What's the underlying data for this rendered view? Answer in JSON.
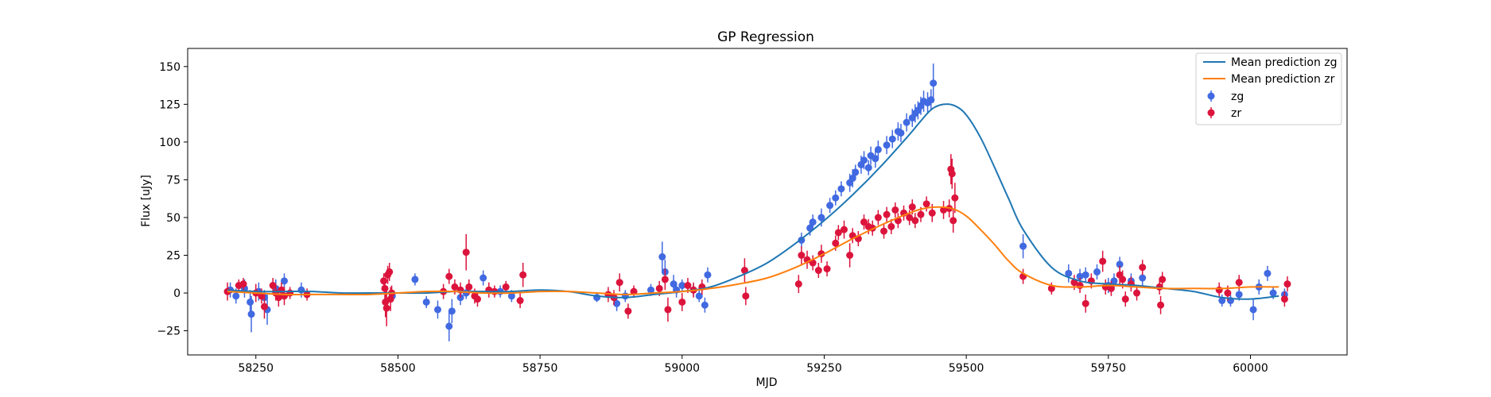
{
  "chart_data": {
    "type": "scatter",
    "title": "GP Regression",
    "xlabel": "MJD",
    "ylabel": "Flux [uJy]",
    "xlim": [
      58130,
      60170
    ],
    "ylim": [
      -41,
      162
    ],
    "xticks": [
      58250,
      58500,
      58750,
      59000,
      59250,
      59500,
      59750,
      60000
    ],
    "yticks": [
      -25,
      0,
      25,
      50,
      75,
      100,
      125,
      150
    ],
    "grid": false,
    "legend_position": "top-right",
    "lines": [
      {
        "name": "Mean prediction zg",
        "color": "#1f77b4",
        "x": [
          58200,
          58250,
          58300,
          58350,
          58400,
          58450,
          58500,
          58550,
          58600,
          58650,
          58700,
          58750,
          58800,
          58850,
          58900,
          58950,
          59000,
          59050,
          59100,
          59150,
          59200,
          59250,
          59300,
          59350,
          59400,
          59420,
          59440,
          59460,
          59480,
          59500,
          59525,
          59550,
          59575,
          59600,
          59650,
          59700,
          59750,
          59800,
          59850,
          59900,
          59950,
          60000,
          60050
        ],
        "y": [
          2,
          1,
          1,
          1,
          0,
          0,
          0,
          0,
          1,
          1,
          1,
          2,
          1,
          -2,
          -3,
          -1,
          1,
          4,
          11,
          20,
          33,
          48,
          65,
          84,
          105,
          114,
          122,
          125,
          124,
          118,
          103,
          83,
          62,
          42,
          17,
          8,
          6,
          5,
          3,
          1,
          -3,
          -4,
          -2
        ]
      },
      {
        "name": "Mean prediction zr",
        "color": "#ff7f0e",
        "x": [
          58200,
          58250,
          58300,
          58350,
          58400,
          58450,
          58500,
          58550,
          58600,
          58650,
          58700,
          58750,
          58800,
          58850,
          58900,
          58950,
          59000,
          59050,
          59100,
          59150,
          59200,
          59250,
          59300,
          59350,
          59400,
          59425,
          59450,
          59475,
          59500,
          59525,
          59550,
          59575,
          59600,
          59650,
          59700,
          59750,
          59800,
          59850,
          59900,
          59950,
          60000,
          60050
        ],
        "y": [
          1,
          0,
          -1,
          -1,
          -1,
          -1,
          0,
          1,
          1,
          0,
          0,
          1,
          1,
          0,
          -1,
          0,
          1,
          3,
          6,
          10,
          17,
          26,
          36,
          45,
          53,
          56,
          57,
          56,
          51,
          42,
          32,
          21,
          13,
          5,
          4,
          5,
          4,
          3,
          3,
          3,
          4,
          4
        ]
      }
    ],
    "series": [
      {
        "name": "zg",
        "color": "#4169e1",
        "points": [
          [
            58205,
            2,
            5
          ],
          [
            58215,
            -2,
            5
          ],
          [
            58230,
            3,
            6
          ],
          [
            58240,
            -6,
            8
          ],
          [
            58242,
            -14,
            12
          ],
          [
            58255,
            1,
            6
          ],
          [
            58265,
            -3,
            5
          ],
          [
            58270,
            -11,
            10
          ],
          [
            58285,
            3,
            6
          ],
          [
            58300,
            8,
            5
          ],
          [
            58330,
            2,
            5
          ],
          [
            58490,
            -2,
            4
          ],
          [
            58530,
            9,
            4
          ],
          [
            58550,
            -6,
            4
          ],
          [
            58570,
            -11,
            6
          ],
          [
            58590,
            -22,
            10
          ],
          [
            58595,
            -12,
            8
          ],
          [
            58610,
            -3,
            5
          ],
          [
            58620,
            0,
            4
          ],
          [
            58650,
            10,
            5
          ],
          [
            58680,
            1,
            4
          ],
          [
            58700,
            -2,
            4
          ],
          [
            58850,
            -3,
            3
          ],
          [
            58885,
            -7,
            5
          ],
          [
            58900,
            -2,
            4
          ],
          [
            58945,
            2,
            4
          ],
          [
            58965,
            24,
            10
          ],
          [
            58970,
            14,
            8
          ],
          [
            58985,
            6,
            6
          ],
          [
            58990,
            2,
            5
          ],
          [
            59000,
            5,
            4
          ],
          [
            59020,
            2,
            4
          ],
          [
            59030,
            -2,
            4
          ],
          [
            59040,
            -8,
            5
          ],
          [
            59045,
            12,
            5
          ],
          [
            59210,
            35,
            5
          ],
          [
            59225,
            43,
            5
          ],
          [
            59230,
            47,
            5
          ],
          [
            59245,
            50,
            6
          ],
          [
            59260,
            58,
            5
          ],
          [
            59270,
            63,
            5
          ],
          [
            59280,
            69,
            5
          ],
          [
            59295,
            73,
            6
          ],
          [
            59300,
            76,
            6
          ],
          [
            59305,
            80,
            5
          ],
          [
            59315,
            85,
            6
          ],
          [
            59320,
            88,
            6
          ],
          [
            59328,
            83,
            5
          ],
          [
            59332,
            91,
            6
          ],
          [
            59340,
            89,
            6
          ],
          [
            59345,
            95,
            6
          ],
          [
            59360,
            98,
            6
          ],
          [
            59370,
            102,
            6
          ],
          [
            59380,
            107,
            6
          ],
          [
            59385,
            106,
            6
          ],
          [
            59395,
            113,
            6
          ],
          [
            59405,
            116,
            6
          ],
          [
            59410,
            119,
            6
          ],
          [
            59415,
            121,
            6
          ],
          [
            59420,
            124,
            6
          ],
          [
            59425,
            127,
            7
          ],
          [
            59432,
            126,
            7
          ],
          [
            59438,
            128,
            7
          ],
          [
            59442,
            139,
            13
          ],
          [
            59600,
            31,
            8
          ],
          [
            59680,
            13,
            6
          ],
          [
            59700,
            11,
            5
          ],
          [
            59710,
            12,
            5
          ],
          [
            59730,
            14,
            5
          ],
          [
            59750,
            5,
            5
          ],
          [
            59760,
            8,
            5
          ],
          [
            59770,
            19,
            5
          ],
          [
            59790,
            8,
            5
          ],
          [
            59810,
            10,
            5
          ],
          [
            59950,
            -5,
            4
          ],
          [
            59965,
            -5,
            4
          ],
          [
            59980,
            -1,
            4
          ],
          [
            60005,
            -11,
            7
          ],
          [
            60015,
            4,
            5
          ],
          [
            60030,
            13,
            5
          ],
          [
            60040,
            0,
            4
          ],
          [
            60060,
            -1,
            4
          ]
        ]
      },
      {
        "name": "zr",
        "color": "#dc143c",
        "points": [
          [
            58200,
            1,
            6
          ],
          [
            58220,
            5,
            4
          ],
          [
            58228,
            6,
            4
          ],
          [
            58250,
            0,
            6
          ],
          [
            58260,
            -2,
            5
          ],
          [
            58265,
            -9,
            8
          ],
          [
            58280,
            5,
            5
          ],
          [
            58285,
            0,
            5
          ],
          [
            58290,
            -3,
            6
          ],
          [
            58295,
            2,
            5
          ],
          [
            58300,
            -2,
            6
          ],
          [
            58310,
            0,
            4
          ],
          [
            58340,
            -1,
            4
          ],
          [
            58475,
            8,
            5
          ],
          [
            58477,
            3,
            7
          ],
          [
            58478,
            -6,
            10
          ],
          [
            58480,
            -10,
            12
          ],
          [
            58482,
            12,
            6
          ],
          [
            58485,
            14,
            6
          ],
          [
            58487,
            -4,
            8
          ],
          [
            58489,
            0,
            5
          ],
          [
            58580,
            1,
            5
          ],
          [
            58590,
            11,
            5
          ],
          [
            58600,
            4,
            5
          ],
          [
            58610,
            2,
            5
          ],
          [
            58620,
            27,
            12
          ],
          [
            58625,
            4,
            5
          ],
          [
            58635,
            -2,
            5
          ],
          [
            58640,
            -4,
            5
          ],
          [
            58660,
            2,
            5
          ],
          [
            58670,
            1,
            4
          ],
          [
            58690,
            4,
            4
          ],
          [
            58715,
            -5,
            5
          ],
          [
            58720,
            12,
            8
          ],
          [
            58870,
            -1,
            5
          ],
          [
            58880,
            -3,
            5
          ],
          [
            58890,
            7,
            6
          ],
          [
            58905,
            -12,
            5
          ],
          [
            58915,
            1,
            4
          ],
          [
            58960,
            3,
            5
          ],
          [
            58970,
            9,
            7
          ],
          [
            58975,
            -11,
            8
          ],
          [
            59000,
            -6,
            6
          ],
          [
            59010,
            5,
            5
          ],
          [
            59020,
            2,
            5
          ],
          [
            59035,
            4,
            5
          ],
          [
            59110,
            15,
            8
          ],
          [
            59112,
            -2,
            6
          ],
          [
            59205,
            6,
            6
          ],
          [
            59210,
            25,
            6
          ],
          [
            59220,
            22,
            6
          ],
          [
            59230,
            20,
            5
          ],
          [
            59240,
            15,
            5
          ],
          [
            59245,
            26,
            6
          ],
          [
            59255,
            16,
            5
          ],
          [
            59270,
            33,
            5
          ],
          [
            59275,
            40,
            5
          ],
          [
            59285,
            42,
            6
          ],
          [
            59295,
            25,
            8
          ],
          [
            59300,
            38,
            5
          ],
          [
            59310,
            36,
            5
          ],
          [
            59320,
            47,
            5
          ],
          [
            59328,
            44,
            5
          ],
          [
            59335,
            43,
            5
          ],
          [
            59345,
            50,
            5
          ],
          [
            59355,
            41,
            5
          ],
          [
            59360,
            52,
            5
          ],
          [
            59368,
            44,
            5
          ],
          [
            59375,
            55,
            5
          ],
          [
            59380,
            48,
            5
          ],
          [
            59390,
            53,
            5
          ],
          [
            59400,
            50,
            5
          ],
          [
            59405,
            57,
            5
          ],
          [
            59410,
            48,
            5
          ],
          [
            59420,
            52,
            5
          ],
          [
            59430,
            59,
            5
          ],
          [
            59440,
            53,
            6
          ],
          [
            59460,
            55,
            6
          ],
          [
            59470,
            56,
            6
          ],
          [
            59473,
            82,
            10
          ],
          [
            59475,
            79,
            10
          ],
          [
            59477,
            48,
            8
          ],
          [
            59480,
            63,
            10
          ],
          [
            59600,
            11,
            5
          ],
          [
            59650,
            3,
            4
          ],
          [
            59690,
            7,
            5
          ],
          [
            59700,
            5,
            5
          ],
          [
            59710,
            -7,
            6
          ],
          [
            59720,
            8,
            5
          ],
          [
            59740,
            21,
            7
          ],
          [
            59745,
            4,
            5
          ],
          [
            59755,
            3,
            5
          ],
          [
            59770,
            12,
            6
          ],
          [
            59775,
            9,
            6
          ],
          [
            59780,
            -4,
            5
          ],
          [
            59790,
            6,
            5
          ],
          [
            59800,
            0,
            5
          ],
          [
            59810,
            17,
            5
          ],
          [
            59840,
            4,
            5
          ],
          [
            59842,
            -8,
            6
          ],
          [
            59845,
            9,
            5
          ],
          [
            59945,
            2,
            5
          ],
          [
            59960,
            0,
            5
          ],
          [
            59980,
            7,
            5
          ],
          [
            60060,
            -4,
            5
          ],
          [
            60065,
            6,
            5
          ]
        ]
      }
    ]
  }
}
